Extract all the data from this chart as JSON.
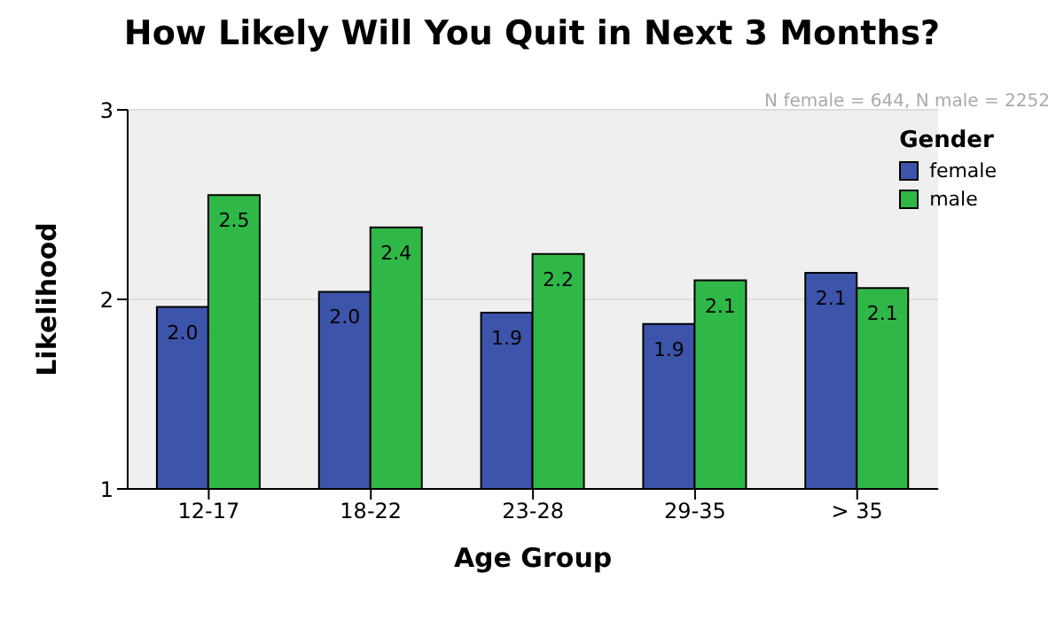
{
  "chart_data": {
    "type": "bar",
    "title": "How Likely Will You Quit in Next 3 Months?",
    "xlabel": "Age Group",
    "ylabel": "Likelihood",
    "legend_title": "Gender",
    "annotations": [
      "N female = 644, N male = 2252"
    ],
    "categories": [
      "12-17",
      "18-22",
      "23-28",
      "29-35",
      "> 35"
    ],
    "series": [
      {
        "name": "female",
        "color": "#3c55aa",
        "values": [
          1.96,
          2.04,
          1.93,
          1.87,
          2.14
        ],
        "value_labels": [
          "2.0",
          "2.0",
          "1.9",
          "1.9",
          "2.1"
        ]
      },
      {
        "name": "male",
        "color": "#2fb848",
        "values": [
          2.55,
          2.38,
          2.24,
          2.1,
          2.06
        ],
        "value_labels": [
          "2.5",
          "2.4",
          "2.2",
          "2.1",
          "2.1"
        ]
      }
    ],
    "ylim": [
      1,
      3
    ],
    "yticks": [
      1,
      2,
      3
    ],
    "grid": "y",
    "legend": "top right"
  }
}
